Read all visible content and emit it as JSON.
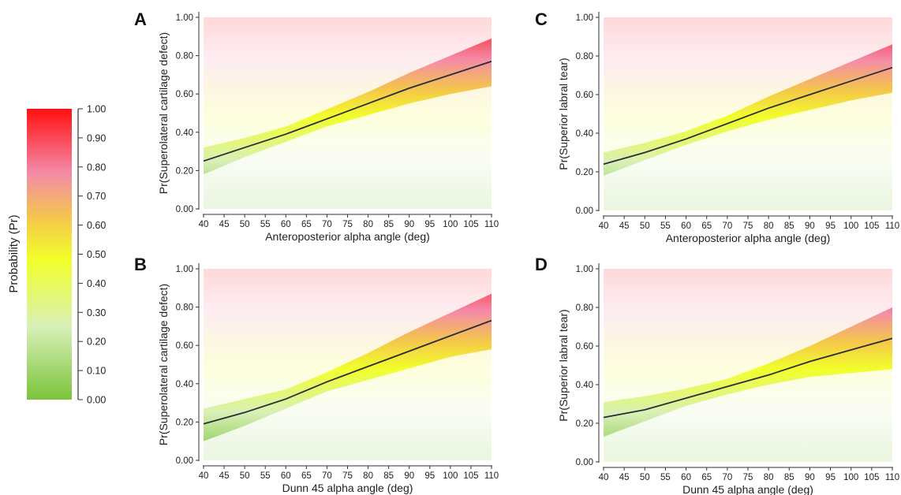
{
  "colorbar": {
    "label": "Probability (Pr)",
    "ticks": [
      "0.00",
      "0.10",
      "0.20",
      "0.30",
      "0.40",
      "0.50",
      "0.60",
      "0.70",
      "0.80",
      "0.90",
      "1.00"
    ],
    "colors": [
      {
        "at": 0.0,
        "color": "#7ac43a"
      },
      {
        "at": 0.25,
        "color": "#d8f0b8"
      },
      {
        "at": 0.48,
        "color": "#f2ff2a"
      },
      {
        "at": 0.62,
        "color": "#f4c84a"
      },
      {
        "at": 0.78,
        "color": "#f48aa8"
      },
      {
        "at": 1.0,
        "color": "#ff1111"
      }
    ]
  },
  "chart_data": [
    {
      "type": "line",
      "panel": "A",
      "xlabel": "Anteroposterior alpha angle (deg)",
      "ylabel": "Pr(Superolateral cartilage defect)",
      "xlim": [
        40,
        110
      ],
      "ylim": [
        0,
        1
      ],
      "xticks": [
        "40",
        "45",
        "50",
        "55",
        "60",
        "65",
        "70",
        "75",
        "80",
        "85",
        "90",
        "95",
        "100",
        "105",
        "110"
      ],
      "yticks": [
        "0.00",
        "0.20",
        "0.40",
        "0.60",
        "0.80",
        "1.00"
      ],
      "x": [
        40,
        50,
        60,
        70,
        80,
        90,
        100,
        110
      ],
      "y": [
        0.25,
        0.32,
        0.39,
        0.47,
        0.55,
        0.63,
        0.7,
        0.77
      ],
      "lower": [
        0.18,
        0.27,
        0.35,
        0.43,
        0.49,
        0.55,
        0.6,
        0.64
      ],
      "upper": [
        0.32,
        0.37,
        0.43,
        0.52,
        0.61,
        0.71,
        0.8,
        0.89
      ]
    },
    {
      "type": "line",
      "panel": "B",
      "xlabel": "Dunn 45 alpha angle (deg)",
      "ylabel": "Pr(Superolateral cartilage defect)",
      "xlim": [
        40,
        110
      ],
      "ylim": [
        0,
        1
      ],
      "xticks": [
        "40",
        "45",
        "50",
        "55",
        "60",
        "65",
        "70",
        "75",
        "80",
        "85",
        "90",
        "95",
        "100",
        "105",
        "110"
      ],
      "yticks": [
        "0.00",
        "0.20",
        "0.40",
        "0.60",
        "0.80",
        "1.00"
      ],
      "x": [
        40,
        50,
        60,
        70,
        80,
        90,
        100,
        110
      ],
      "y": [
        0.19,
        0.25,
        0.32,
        0.41,
        0.49,
        0.57,
        0.65,
        0.73
      ],
      "lower": [
        0.1,
        0.18,
        0.27,
        0.36,
        0.42,
        0.48,
        0.54,
        0.58
      ],
      "upper": [
        0.27,
        0.32,
        0.37,
        0.46,
        0.56,
        0.67,
        0.77,
        0.87
      ]
    },
    {
      "type": "line",
      "panel": "C",
      "xlabel": "Anteroposterior alpha angle (deg)",
      "ylabel": "Pr(Superior labral tear)",
      "xlim": [
        40,
        110
      ],
      "ylim": [
        0,
        1
      ],
      "xticks": [
        "40",
        "45",
        "50",
        "55",
        "60",
        "65",
        "70",
        "75",
        "80",
        "85",
        "90",
        "95",
        "100",
        "105",
        "110"
      ],
      "yticks": [
        "0.00",
        "0.20",
        "0.40",
        "0.60",
        "0.80",
        "1.00"
      ],
      "x": [
        40,
        50,
        60,
        70,
        80,
        90,
        100,
        110
      ],
      "y": [
        0.24,
        0.3,
        0.37,
        0.45,
        0.53,
        0.6,
        0.67,
        0.74
      ],
      "lower": [
        0.18,
        0.26,
        0.34,
        0.41,
        0.47,
        0.52,
        0.57,
        0.61
      ],
      "upper": [
        0.3,
        0.35,
        0.41,
        0.49,
        0.59,
        0.68,
        0.77,
        0.86
      ]
    },
    {
      "type": "line",
      "panel": "D",
      "xlabel": "Dunn 45 alpha angle (deg)",
      "ylabel": "Pr(Superior labral tear)",
      "xlim": [
        40,
        110
      ],
      "ylim": [
        0,
        1
      ],
      "xticks": [
        "40",
        "45",
        "50",
        "55",
        "60",
        "65",
        "70",
        "75",
        "80",
        "85",
        "90",
        "95",
        "100",
        "105",
        "110"
      ],
      "yticks": [
        "0.00",
        "0.20",
        "0.40",
        "0.60",
        "0.80",
        "1.00"
      ],
      "x": [
        40,
        50,
        60,
        70,
        80,
        90,
        100,
        110
      ],
      "y": [
        0.23,
        0.27,
        0.33,
        0.39,
        0.45,
        0.52,
        0.58,
        0.64
      ],
      "lower": [
        0.13,
        0.21,
        0.29,
        0.35,
        0.4,
        0.44,
        0.46,
        0.48
      ],
      "upper": [
        0.31,
        0.34,
        0.38,
        0.43,
        0.51,
        0.6,
        0.7,
        0.8
      ]
    }
  ]
}
